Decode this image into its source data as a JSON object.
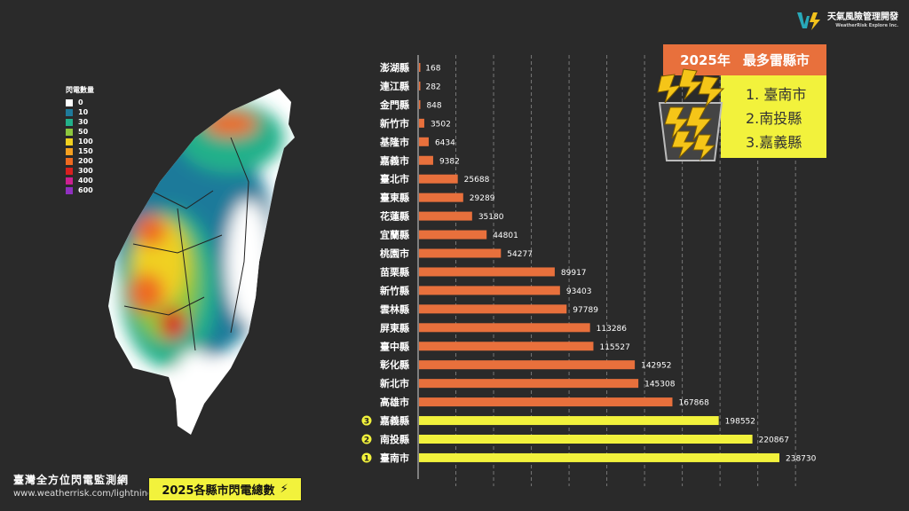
{
  "legend": {
    "title": "閃電數量",
    "items": [
      {
        "label": "0",
        "color": "#ffffff"
      },
      {
        "label": "10",
        "color": "#1f7a9a"
      },
      {
        "label": "30",
        "color": "#22b08a"
      },
      {
        "label": "50",
        "color": "#8cc63e"
      },
      {
        "label": "100",
        "color": "#f0d020"
      },
      {
        "label": "150",
        "color": "#f5a020"
      },
      {
        "label": "200",
        "color": "#ee6a20"
      },
      {
        "label": "300",
        "color": "#d82020"
      },
      {
        "label": "400",
        "color": "#cc2090"
      },
      {
        "label": "600",
        "color": "#9030c0"
      }
    ]
  },
  "logo": {
    "name_zh": "天氣風險管理開發",
    "name_en": "WeatherRisk Explore Inc."
  },
  "panel": {
    "year": "2025年",
    "title": "最多雷縣市",
    "ranks": [
      "1. 臺南市",
      "2.南投縣",
      "3.嘉義縣"
    ]
  },
  "footer": {
    "network": "臺灣全方位閃電監測網",
    "url": "www.weatherrisk.com/lightning",
    "tag": "2025各縣市閃電總數"
  },
  "colors": {
    "normal": "#e8703c",
    "top3": "#f2f23c",
    "background": "#2a2a2a"
  },
  "chart_data": {
    "type": "bar",
    "orientation": "horizontal",
    "categories": [
      "澎湖縣",
      "連江縣",
      "金門縣",
      "新竹市",
      "基隆市",
      "嘉義市",
      "臺北市",
      "臺東縣",
      "花蓮縣",
      "宜蘭縣",
      "桃園市",
      "苗栗縣",
      "新竹縣",
      "雲林縣",
      "屏東縣",
      "臺中縣",
      "彰化縣",
      "新北市",
      "高雄市",
      "嘉義縣",
      "南投縣",
      "臺南市"
    ],
    "values": [
      168,
      282,
      848,
      3502,
      6434,
      9382,
      25688,
      29289,
      35180,
      44801,
      54277,
      89917,
      93403,
      97789,
      113286,
      115527,
      142952,
      145308,
      167868,
      198552,
      220867,
      238730
    ],
    "rank_badges": {
      "嘉義縣": "3",
      "南投縣": "2",
      "臺南市": "1"
    },
    "xlim": [
      0,
      250000
    ],
    "grid": "vertical dashed"
  }
}
